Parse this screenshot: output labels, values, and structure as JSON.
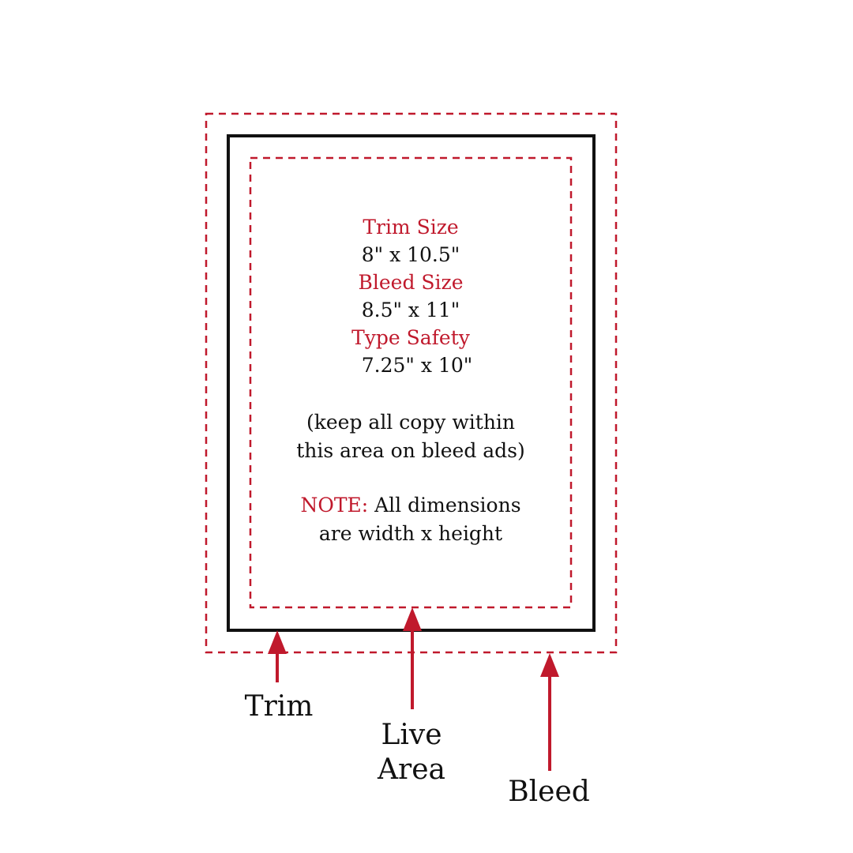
{
  "specs": {
    "trim_label": "Trim Size",
    "trim_value": "8\" x 10.5\"",
    "bleed_label": "Bleed Size",
    "bleed_value": "8.5\" x 11\"",
    "safety_label": "Type Safety",
    "safety_value": "7.25\" x 10\""
  },
  "copy_note": {
    "line1": "(keep all copy within",
    "line2": "this area on bleed ads)"
  },
  "dimension_note": {
    "prefix": "NOTE:",
    "line1_rest": " All dimensions",
    "line2": "are width x height"
  },
  "callouts": {
    "trim": "Trim",
    "live_line1": "Live",
    "live_line2": "Area",
    "bleed": "Bleed"
  },
  "colors": {
    "accent_red": "#c0192c",
    "trim_line": "#111111",
    "background": "#ffffff"
  }
}
